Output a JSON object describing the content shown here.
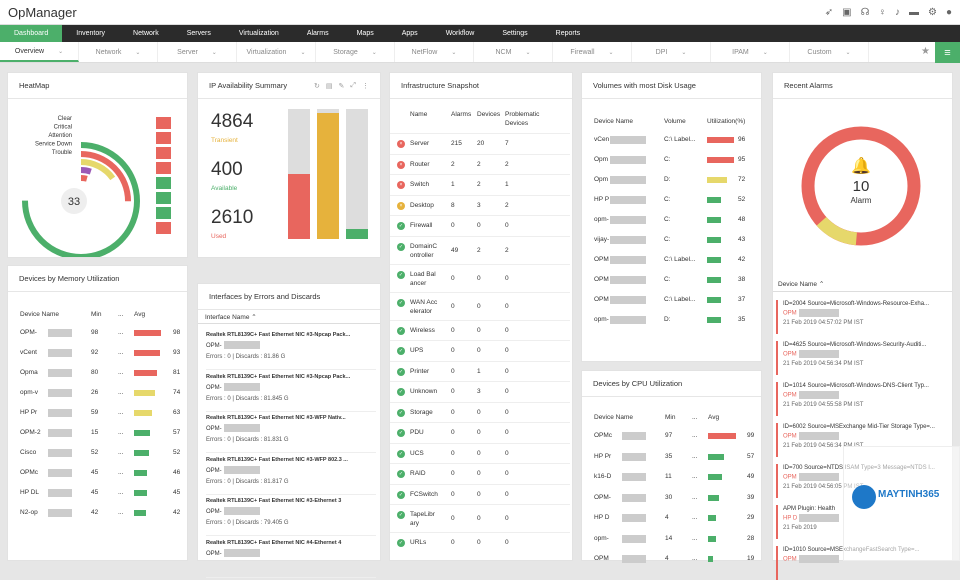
{
  "app": {
    "title": "OpManager"
  },
  "nav": [
    {
      "label": "Dashboard",
      "active": true
    },
    {
      "label": "Inventory"
    },
    {
      "label": "Network"
    },
    {
      "label": "Servers"
    },
    {
      "label": "Virtualization"
    },
    {
      "label": "Alarms"
    },
    {
      "label": "Maps"
    },
    {
      "label": "Apps"
    },
    {
      "label": "Workflow"
    },
    {
      "label": "Settings"
    },
    {
      "label": "Reports"
    }
  ],
  "subnav": [
    {
      "label": "Overview"
    },
    {
      "label": "Network"
    },
    {
      "label": "Server"
    },
    {
      "label": "Virtualization"
    },
    {
      "label": "Storage"
    },
    {
      "label": "NetFlow"
    },
    {
      "label": "NCM"
    },
    {
      "label": "Firewall"
    },
    {
      "label": "DPI"
    },
    {
      "label": "IPAM"
    },
    {
      "label": "Custom"
    }
  ],
  "heatmap": {
    "title": "HeatMap",
    "legend": [
      "Clear",
      "Critical",
      "Attention",
      "Service Down",
      "Trouble"
    ],
    "count": "33",
    "colors": [
      "#4caf6a",
      "#e8665e",
      "#e6d86b",
      "#9b59b6",
      "#e8665e"
    ]
  },
  "ip": {
    "title": "IP Availability Summary",
    "stats": [
      {
        "value": "4864",
        "label": "Transient",
        "color": "#e6b23c"
      },
      {
        "value": "400",
        "label": "Available",
        "color": "#4caf6a"
      },
      {
        "value": "2610",
        "label": "Used",
        "color": "#e8665e"
      }
    ],
    "bars": [
      {
        "fill": 0.5,
        "color": "#e8665e"
      },
      {
        "fill": 0.97,
        "color": "#e6b23c"
      },
      {
        "fill": 0.08,
        "color": "#4caf6a"
      }
    ]
  },
  "infra": {
    "title": "Infrastructure Snapshot",
    "headers": [
      "Name",
      "Alarms",
      "Devices",
      "Problematic Devices"
    ],
    "rows": [
      {
        "name": "Server",
        "a": "215",
        "d": "20",
        "p": "7",
        "s": "r"
      },
      {
        "name": "Router",
        "a": "2",
        "d": "2",
        "p": "2",
        "s": "r"
      },
      {
        "name": "Switch",
        "a": "1",
        "d": "2",
        "p": "1",
        "s": "r"
      },
      {
        "name": "Desktop",
        "a": "8",
        "d": "3",
        "p": "2",
        "s": "o"
      },
      {
        "name": "Firewall",
        "a": "0",
        "d": "0",
        "p": "0",
        "s": "g"
      },
      {
        "name": "DomainController",
        "a": "49",
        "d": "2",
        "p": "2",
        "s": "g"
      },
      {
        "name": "Load Balancer",
        "a": "0",
        "d": "0",
        "p": "0",
        "s": "g"
      },
      {
        "name": "WAN Accelerator",
        "a": "0",
        "d": "0",
        "p": "0",
        "s": "g"
      },
      {
        "name": "Wireless",
        "a": "0",
        "d": "0",
        "p": "0",
        "s": "g"
      },
      {
        "name": "UPS",
        "a": "0",
        "d": "0",
        "p": "0",
        "s": "g"
      },
      {
        "name": "Printer",
        "a": "0",
        "d": "1",
        "p": "0",
        "s": "g"
      },
      {
        "name": "Unknown",
        "a": "0",
        "d": "3",
        "p": "0",
        "s": "g"
      },
      {
        "name": "Storage",
        "a": "0",
        "d": "0",
        "p": "0",
        "s": "g"
      },
      {
        "name": "PDU",
        "a": "0",
        "d": "0",
        "p": "0",
        "s": "g"
      },
      {
        "name": "UCS",
        "a": "0",
        "d": "0",
        "p": "0",
        "s": "g"
      },
      {
        "name": "RAID",
        "a": "0",
        "d": "0",
        "p": "0",
        "s": "g"
      },
      {
        "name": "FCSwitch",
        "a": "0",
        "d": "0",
        "p": "0",
        "s": "g"
      },
      {
        "name": "TapeLibrary",
        "a": "0",
        "d": "0",
        "p": "0",
        "s": "g"
      },
      {
        "name": "URLs",
        "a": "0",
        "d": "0",
        "p": "0",
        "s": "g"
      }
    ]
  },
  "volumes": {
    "title": "Volumes with most Disk Usage",
    "headers": [
      "Device Name",
      "Volume",
      "Utilization(%)"
    ],
    "rows": [
      {
        "dev": "vCen",
        "vol": "C:\\ Label...",
        "val": "96",
        "c": "red"
      },
      {
        "dev": "Opm",
        "vol": "C:",
        "val": "95",
        "c": "red"
      },
      {
        "dev": "Opm",
        "vol": "D:",
        "val": "72",
        "c": "yel"
      },
      {
        "dev": "HP P",
        "vol": "C:",
        "val": "52",
        "c": "grn"
      },
      {
        "dev": "opm-",
        "vol": "C:",
        "val": "48",
        "c": "grn"
      },
      {
        "dev": "vijay-",
        "vol": "C:",
        "val": "43",
        "c": "grn"
      },
      {
        "dev": "OPM",
        "vol": "C:\\ Label...",
        "val": "42",
        "c": "grn"
      },
      {
        "dev": "OPM",
        "vol": "C:",
        "val": "38",
        "c": "grn"
      },
      {
        "dev": "OPM",
        "vol": "C:\\ Label...",
        "val": "37",
        "c": "grn"
      },
      {
        "dev": "opm-",
        "vol": "D:",
        "val": "35",
        "c": "grn"
      }
    ]
  },
  "alarms": {
    "title": "Recent Alarms",
    "count": "10",
    "label": "Alarm",
    "colhead": "Device Name",
    "items": [
      {
        "t": "ID=2004 Source=Microsoft-Windows-Resource-Exha...",
        "d": "OPM",
        "ts": "21 Feb 2019 04:57:02 PM IST"
      },
      {
        "t": "ID=4625 Source=Microsoft-Windows-Security-Auditi...",
        "d": "OPM",
        "ts": "21 Feb 2019 04:56:34 PM IST"
      },
      {
        "t": "ID=1014 Source=Microsoft-Windows-DNS-Client Typ...",
        "d": "OPM",
        "ts": "21 Feb 2019 04:55:58 PM IST"
      },
      {
        "t": "ID=6002 Source=MSExchange Mid-Tier Storage Type=...",
        "d": "OPM",
        "ts": "21 Feb 2019 04:56:34 PM IST"
      },
      {
        "t": "ID=700 Source=NTDS ISAM Type=3 Message=NTDS I...",
        "d": "OPM",
        "ts": "21 Feb 2019 04:56:05 PM IST"
      },
      {
        "t": "APM Plugin: Health",
        "d": "HP D",
        "ts": "21 Feb 2019"
      },
      {
        "t": "ID=1010 Source=MSExchangeFastSearch Type=...",
        "d": "OPM",
        "ts": ""
      }
    ]
  },
  "memory": {
    "title": "Devices by Memory Utilization",
    "headers": [
      "Device Name",
      "Min",
      "...",
      "Avg"
    ],
    "rows": [
      {
        "dev": "OPM-",
        "min": "98",
        "avg": "98",
        "c": "red",
        "f": 0.98
      },
      {
        "dev": "vCent",
        "min": "92",
        "avg": "93",
        "c": "red",
        "f": 0.93
      },
      {
        "dev": "Opma",
        "min": "80",
        "avg": "81",
        "c": "red",
        "f": 0.81
      },
      {
        "dev": "opm-v",
        "min": "26",
        "avg": "74",
        "c": "yel",
        "f": 0.74
      },
      {
        "dev": "HP Pr",
        "min": "59",
        "avg": "63",
        "c": "yel",
        "f": 0.63
      },
      {
        "dev": "OPM-2",
        "min": "15",
        "avg": "57",
        "c": "grn",
        "f": 0.57
      },
      {
        "dev": "Cisco",
        "min": "52",
        "avg": "52",
        "c": "grn",
        "f": 0.52
      },
      {
        "dev": "OPMc",
        "min": "45",
        "avg": "46",
        "c": "grn",
        "f": 0.46
      },
      {
        "dev": "HP DL",
        "min": "45",
        "avg": "45",
        "c": "grn",
        "f": 0.45
      },
      {
        "dev": "N2-op",
        "min": "42",
        "avg": "42",
        "c": "grn",
        "f": 0.42
      }
    ]
  },
  "interfaces": {
    "title": "Interfaces by Errors and Discards",
    "colhead": "Interface Name",
    "items": [
      {
        "name": "Realtek RTL8139C+ Fast Ethernet NIC #3-Npcap Pack...",
        "dev": "OPM-",
        "stat": "Errors : 0 | Discards : 81.86 G"
      },
      {
        "name": "Realtek RTL8139C+ Fast Ethernet NIC #3-Npcap Pack...",
        "dev": "OPM-",
        "stat": "Errors : 0 | Discards : 81.845 G"
      },
      {
        "name": "Realtek RTL8139C+ Fast Ethernet NIC #3-WFP Nativ...",
        "dev": "OPM-",
        "stat": "Errors : 0 | Discards : 81.831 G"
      },
      {
        "name": "Realtek RTL8139C+ Fast Ethernet NIC #3-WFP 802.3 ...",
        "dev": "OPM-",
        "stat": "Errors : 0 | Discards : 81.817 G"
      },
      {
        "name": "Realtek RTL8139C+ Fast Ethernet NIC #3-Ethernet 3",
        "dev": "OPM-",
        "stat": "Errors : 0 | Discards : 79.405 G"
      },
      {
        "name": "Realtek RTL8139C+ Fast Ethernet NIC #4-Ethernet 4",
        "dev": "OPM-",
        "stat": ""
      }
    ]
  },
  "cpu": {
    "title": "Devices by CPU Utilization",
    "headers": [
      "Device Name",
      "Min",
      "...",
      "Avg"
    ],
    "rows": [
      {
        "dev": "OPMc",
        "min": "97",
        "avg": "99",
        "c": "red",
        "f": 0.99
      },
      {
        "dev": "HP Pr",
        "min": "35",
        "avg": "57",
        "c": "grn",
        "f": 0.57
      },
      {
        "dev": "k16-D",
        "min": "11",
        "avg": "49",
        "c": "grn",
        "f": 0.49
      },
      {
        "dev": "OPM-",
        "min": "30",
        "avg": "39",
        "c": "grn",
        "f": 0.39
      },
      {
        "dev": "HP D",
        "min": "4",
        "avg": "29",
        "c": "grn",
        "f": 0.29
      },
      {
        "dev": "opm-",
        "min": "14",
        "avg": "28",
        "c": "grn",
        "f": 0.28
      },
      {
        "dev": "OPM",
        "min": "4",
        "avg": "19",
        "c": "grn",
        "f": 0.19
      }
    ]
  },
  "watermark": {
    "text": "MAYTINH365"
  }
}
